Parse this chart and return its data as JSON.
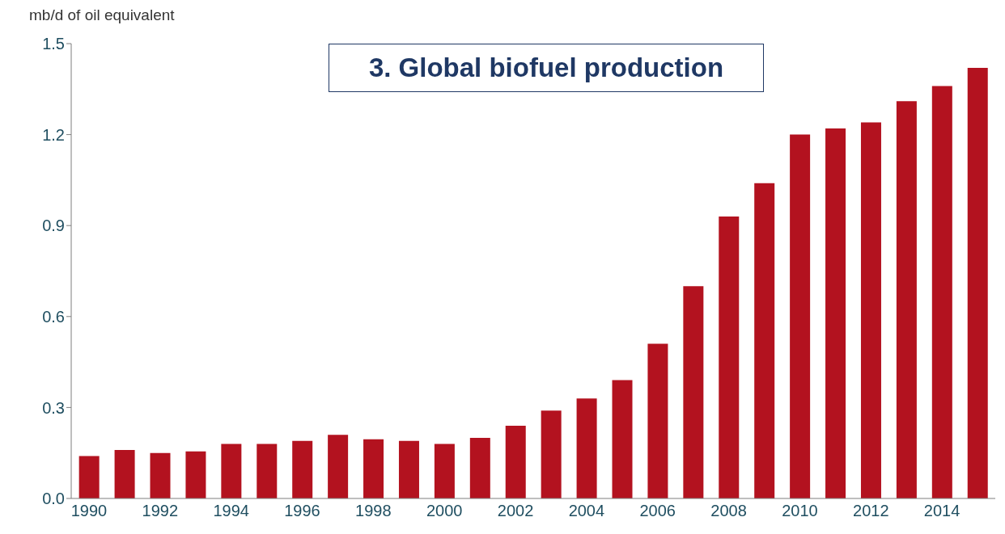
{
  "chart_data": {
    "type": "bar",
    "title": "3. Global biofuel production",
    "ylabel": "mb/d of oil equivalent",
    "categories": [
      "1990",
      null,
      "1992",
      null,
      "1994",
      null,
      "1996",
      null,
      "1998",
      null,
      "2000",
      null,
      "2002",
      null,
      "2004",
      null,
      "2006",
      null,
      "2008",
      null,
      "2010",
      null,
      "2012",
      null,
      "2014",
      null
    ],
    "values": [
      0.14,
      0.16,
      0.15,
      0.155,
      0.18,
      0.18,
      0.19,
      0.21,
      0.195,
      0.19,
      0.18,
      0.2,
      0.24,
      0.29,
      0.33,
      0.39,
      0.51,
      0.7,
      0.93,
      1.04,
      1.2,
      1.22,
      1.24,
      1.31,
      1.36,
      1.42
    ],
    "color": "#b3121f",
    "ylim": [
      0,
      1.5
    ],
    "yticks": [
      {
        "value": 0,
        "label": "0.0"
      },
      0.3,
      0.6,
      0.9,
      1.2,
      1.5
    ],
    "grid": false,
    "legend": false
  }
}
